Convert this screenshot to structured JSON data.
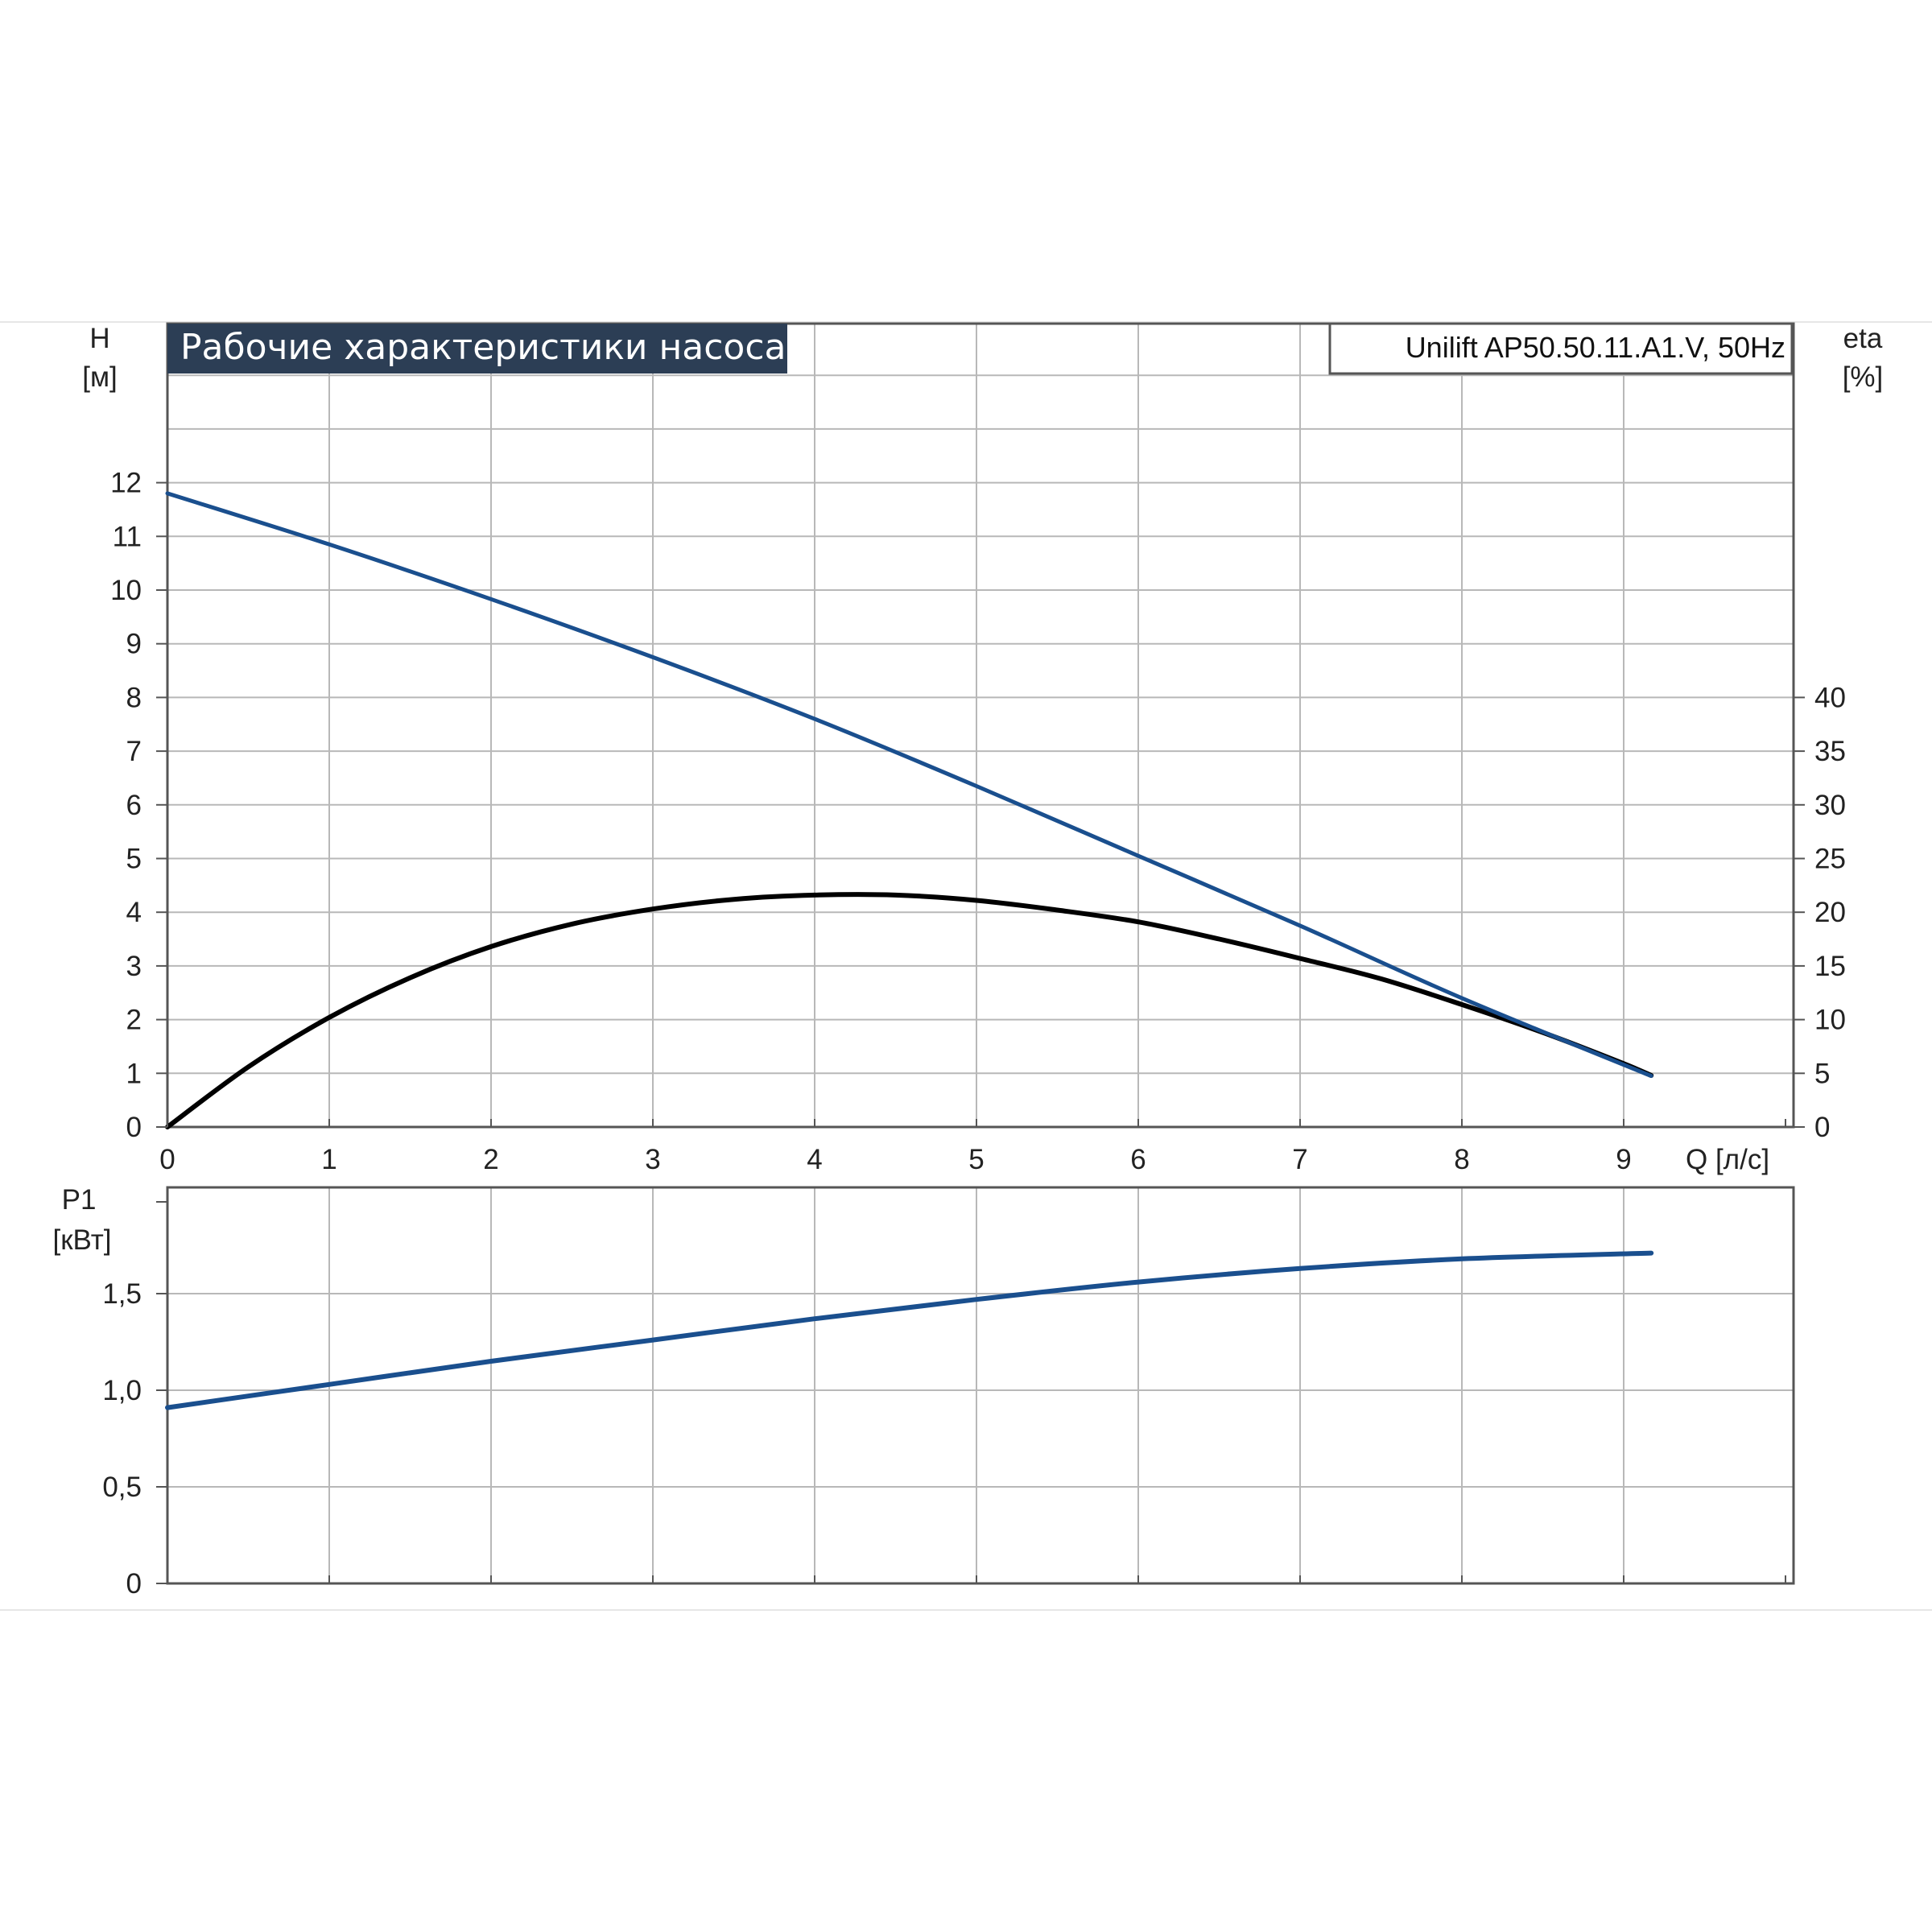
{
  "title": "Рабочие характеристики насоса",
  "model": "Unilift AP50.50.11.A1.V, 50Hz",
  "colors": {
    "head_curve": "#1a4f8e",
    "efficiency_curve": "#000000",
    "power_curve": "#1a4f8e",
    "title_background": "#2c3e55",
    "grid": "#b8b8b8"
  },
  "chart_data": [
    {
      "type": "line",
      "xlabel": "Q [л/с]",
      "ylabel_left": [
        "H",
        "[м]"
      ],
      "ylabel_right": [
        "eta",
        "[%]"
      ],
      "x_ticks": [
        "0",
        "1",
        "2",
        "3",
        "4",
        "5",
        "6",
        "7",
        "8",
        "9"
      ],
      "y_ticks_left": [
        "0",
        "1",
        "2",
        "3",
        "4",
        "5",
        "6",
        "7",
        "8",
        "9",
        "10",
        "11",
        "12"
      ],
      "y_ticks_right": [
        "0",
        "5",
        "10",
        "15",
        "20",
        "25",
        "30",
        "35",
        "40"
      ],
      "xlim": [
        0,
        10
      ],
      "ylim_left": [
        0,
        14
      ],
      "ylim_right": [
        0,
        70
      ],
      "grid": true,
      "series": [
        {
          "axis": "left",
          "x": [
            0,
            1,
            2,
            3,
            4,
            5,
            6,
            7,
            8,
            9.17
          ],
          "y": [
            11.8,
            10.85,
            9.83,
            8.75,
            7.6,
            6.35,
            5.05,
            3.75,
            2.4,
            0.95
          ]
        },
        {
          "axis": "right",
          "x": [
            0,
            0.5,
            1,
            1.5,
            2,
            2.5,
            3,
            3.5,
            4,
            4.5,
            5,
            5.5,
            6,
            6.5,
            7,
            7.5,
            8,
            8.5,
            9,
            9.17
          ],
          "y": [
            0,
            5.6,
            10.2,
            13.9,
            16.8,
            18.9,
            20.3,
            21.2,
            21.6,
            21.6,
            21.1,
            20.2,
            19.1,
            17.5,
            15.7,
            13.8,
            11.4,
            8.8,
            5.9,
            4.8
          ]
        }
      ]
    },
    {
      "type": "line",
      "xlabel": "",
      "ylabel": [
        "P1",
        "[кВт]"
      ],
      "y_ticks": [
        "0",
        "0,5",
        "1,0",
        "1,5"
      ],
      "xlim": [
        0,
        10
      ],
      "ylim": [
        0,
        2.0
      ],
      "grid": true,
      "series": [
        {
          "x": [
            0,
            1,
            2,
            3,
            4,
            5,
            6,
            7,
            8,
            9.17
          ],
          "y": [
            0.91,
            1.03,
            1.15,
            1.26,
            1.37,
            1.47,
            1.56,
            1.63,
            1.68,
            1.71
          ]
        }
      ]
    }
  ]
}
